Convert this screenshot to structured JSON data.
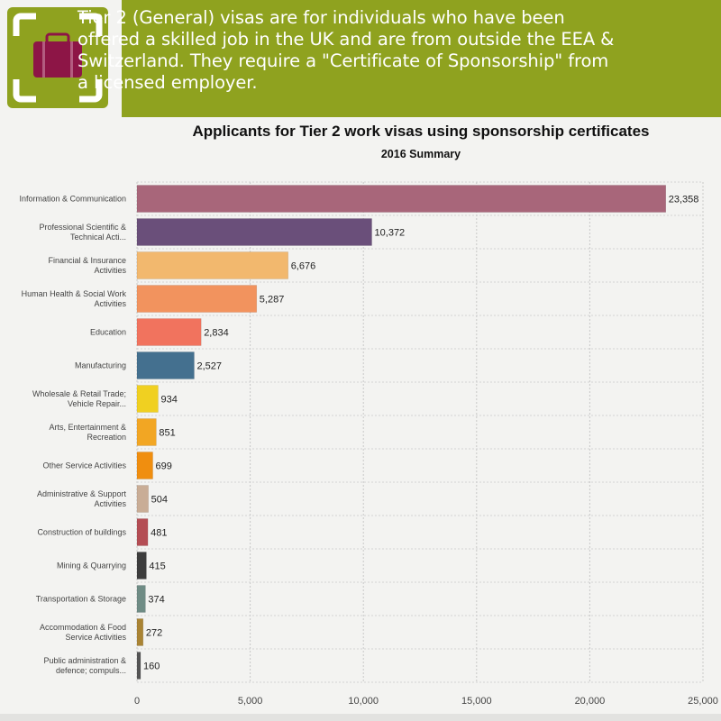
{
  "banner": {
    "lines": [
      "Tier 2 (General) visas are for individuals who have been",
      "offered a skilled job in the UK and are from outside the EEA &",
      "Switzerland.  They require a \"Certificate of Sponsorship\" from",
      "a licensed employer."
    ],
    "icon": "briefcase-icon",
    "colors": {
      "banner_bg": "#8fa21f",
      "icon_bg": "#8fa21f",
      "briefcase": "#8d1546"
    }
  },
  "chart_data": {
    "type": "bar",
    "orientation": "horizontal",
    "title": "Applicants for Tier 2 work visas using sponsorship certificates",
    "subtitle": "2016 Summary",
    "xlabel": "",
    "ylabel": "",
    "xlim": [
      0,
      25000
    ],
    "x_ticks": [
      "0",
      "5,000",
      "10,000",
      "15,000",
      "20,000",
      "25,000"
    ],
    "x_tick_values": [
      0,
      5000,
      10000,
      15000,
      20000,
      25000
    ],
    "grid": true,
    "categories": [
      [
        "Information & Communication"
      ],
      [
        "Professional Scientific &",
        "Technical Acti..."
      ],
      [
        "Financial & Insurance",
        "Activities"
      ],
      [
        "Human Health & Social Work",
        "Activities"
      ],
      [
        "Education"
      ],
      [
        "Manufacturing"
      ],
      [
        "Wholesale & Retail Trade;",
        "Vehicle Repair..."
      ],
      [
        "Arts, Entertainment &",
        "Recreation"
      ],
      [
        "Other Service Activities"
      ],
      [
        "Administrative & Support",
        "Activities"
      ],
      [
        "Construction of buildings"
      ],
      [
        "Mining & Quarrying"
      ],
      [
        "Transportation & Storage"
      ],
      [
        "Accommodation & Food",
        "Service Activities"
      ],
      [
        "Public administration &",
        "defence; compuls..."
      ]
    ],
    "values": [
      23358,
      10372,
      6676,
      5287,
      2834,
      2527,
      934,
      851,
      699,
      504,
      481,
      415,
      374,
      272,
      160
    ],
    "value_labels": [
      "23,358",
      "10,372",
      "6,676",
      "5,287",
      "2,834",
      "2,527",
      "934",
      "851",
      "699",
      "504",
      "481",
      "415",
      "374",
      "272",
      "160"
    ],
    "colors": [
      "#a8667a",
      "#6a4f7a",
      "#f2b86e",
      "#f2935e",
      "#f1735e",
      "#44708f",
      "#f0d021",
      "#f2a623",
      "#f08e0f",
      "#c9ad96",
      "#b44d54",
      "#3d3d3d",
      "#6f8c85",
      "#aa8434",
      "#555555"
    ]
  }
}
